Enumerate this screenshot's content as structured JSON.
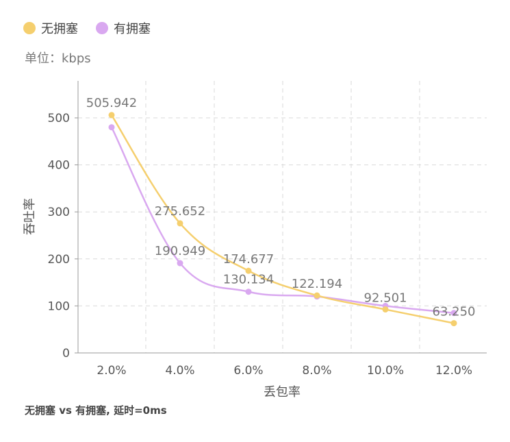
{
  "legend": [
    {
      "name": "无拥塞",
      "color": "#F5CF6E"
    },
    {
      "name": "有拥塞",
      "color": "#D9A8F0"
    }
  ],
  "unit_label": "单位：kbps",
  "caption": "无拥塞 vs 有拥塞, 延时=0ms",
  "chart_data": {
    "type": "line",
    "categories": [
      "2.0%",
      "4.0%",
      "6.0%",
      "8.0%",
      "10.0%",
      "12.0%"
    ],
    "xlabel": "丢包率",
    "ylabel": "吞吐率",
    "ylim": [
      0,
      500
    ],
    "yticks": [
      0,
      100,
      200,
      300,
      400,
      500
    ],
    "grid": true,
    "smooth": true,
    "legend_position": "top-left",
    "series": [
      {
        "name": "无拥塞",
        "color": "#F5CF6E",
        "values": [
          505.942,
          275.652,
          174.677,
          122.194,
          92.501,
          63.25
        ],
        "labels": [
          "505.942",
          "275.652",
          "174.677",
          "122.194",
          "92.501",
          "63.250"
        ]
      },
      {
        "name": "有拥塞",
        "color": "#D9A8F0",
        "values": [
          480,
          190.949,
          130.134,
          120,
          100,
          85
        ],
        "labels": [
          "",
          "190.949",
          "130.134",
          "",
          "",
          ""
        ]
      }
    ]
  }
}
